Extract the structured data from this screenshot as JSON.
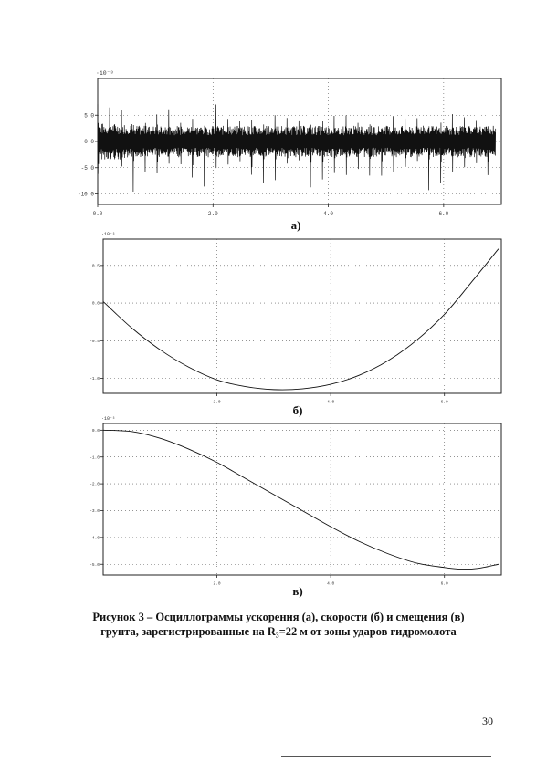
{
  "chart_data": [
    {
      "type": "line",
      "title": "",
      "label": "а)",
      "scale_note": "·10⁻³",
      "xlim": [
        0,
        7
      ],
      "ylim": [
        -12,
        12
      ],
      "x_ticks": [
        "0.0",
        "2.0",
        "4.0",
        "6.0"
      ],
      "x_tick_values": [
        0,
        2,
        4,
        6
      ],
      "y_ticks": [
        "5.0",
        "0.0",
        "-5.0",
        "-10.0"
      ],
      "y_tick_values": [
        5,
        0,
        -5,
        -10
      ],
      "grid": true,
      "series": [
        {
          "description_points": {
            "period": 0.205,
            "peak_positive": 7.5,
            "peak_negative": -10.8,
            "background_amplitude": 3.0,
            "duration": 6.9
          }
        }
      ]
    },
    {
      "type": "line",
      "title": "",
      "label": "б)",
      "scale_note": "·10⁻³",
      "xlim": [
        0,
        7
      ],
      "ylim": [
        -1.2,
        0.85
      ],
      "x_ticks": [
        "2.0",
        "4.0",
        "6.0"
      ],
      "x_tick_values": [
        2,
        4,
        6
      ],
      "y_ticks": [
        "0.5",
        "0.0",
        "-0.5",
        "-1.0"
      ],
      "y_tick_values": [
        0.5,
        0.0,
        -0.5,
        -1.0
      ],
      "grid": true,
      "series": [
        {
          "x": [
            0,
            0.5,
            1.0,
            1.5,
            2.0,
            2.5,
            3.0,
            3.5,
            4.0,
            4.5,
            5.0,
            5.5,
            6.0,
            6.5,
            6.95
          ],
          "y": [
            0.02,
            -0.33,
            -0.62,
            -0.85,
            -1.02,
            -1.11,
            -1.15,
            -1.14,
            -1.08,
            -0.96,
            -0.77,
            -0.5,
            -0.15,
            0.3,
            0.72
          ]
        }
      ]
    },
    {
      "type": "line",
      "title": "",
      "label": "в)",
      "scale_note": "·10⁻³",
      "xlim": [
        0,
        7
      ],
      "ylim": [
        -5.4,
        0.25
      ],
      "x_ticks": [
        "2.0",
        "4.0",
        "6.0"
      ],
      "x_tick_values": [
        2,
        4,
        6
      ],
      "y_ticks": [
        "0.0",
        "-1.0",
        "-2.0",
        "-3.0",
        "-4.0",
        "-5.0"
      ],
      "y_tick_values": [
        0,
        -1,
        -2,
        -3,
        -4,
        -5
      ],
      "grid": true,
      "series": [
        {
          "x": [
            0,
            0.5,
            1.0,
            1.5,
            2.0,
            2.5,
            3.0,
            3.5,
            4.0,
            4.5,
            5.0,
            5.5,
            6.0,
            6.3,
            6.6,
            6.95
          ],
          "y": [
            0.0,
            -0.05,
            -0.3,
            -0.7,
            -1.2,
            -1.8,
            -2.4,
            -3.0,
            -3.6,
            -4.15,
            -4.6,
            -4.95,
            -5.12,
            -5.18,
            -5.15,
            -5.0
          ]
        }
      ]
    }
  ],
  "caption": {
    "text": "Рисунок 3 – Осциллограммы ускорения (а), скорости (б) и смещения (в) грунта, зарегистрированные  на R₃=22 м от зоны ударов гидромолота"
  },
  "page_number": "30"
}
